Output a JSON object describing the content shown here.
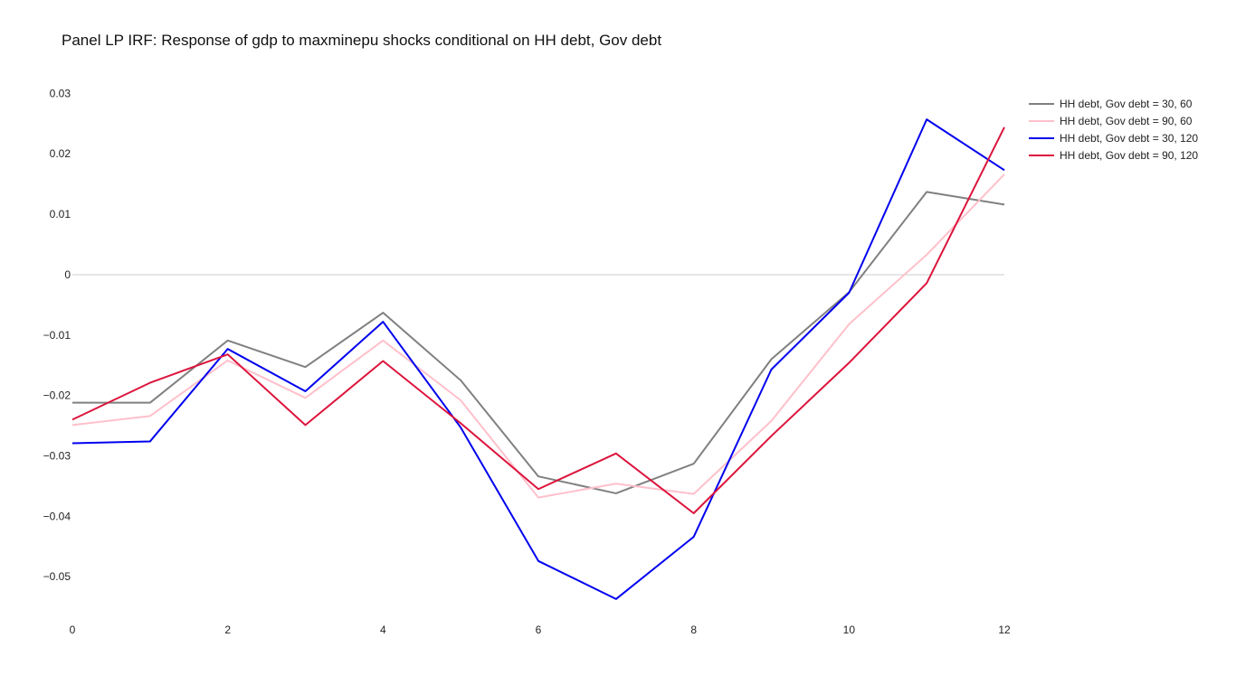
{
  "chart_data": {
    "type": "line",
    "title": "Panel LP IRF: Response of gdp to maxminepu shocks conditional on HH debt, Gov debt",
    "xlabel": "",
    "ylabel": "",
    "x": [
      0,
      1,
      2,
      3,
      4,
      5,
      6,
      7,
      8,
      9,
      10,
      11,
      12
    ],
    "x_ticks": [
      0,
      2,
      4,
      6,
      8,
      10,
      12
    ],
    "x_tick_labels": [
      "0",
      "2",
      "4",
      "6",
      "8",
      "10",
      "12"
    ],
    "xlim": [
      0,
      12
    ],
    "y_ticks": [
      0.03,
      0.02,
      0.01,
      0,
      -0.01,
      -0.02,
      -0.03,
      -0.04,
      -0.05
    ],
    "y_tick_labels": [
      "0.03",
      "0.02",
      "0.01",
      "0",
      "−0.01",
      "−0.02",
      "−0.03",
      "−0.04",
      "−0.05"
    ],
    "ylim": [
      -0.0585,
      0.0335
    ],
    "grid": false,
    "zero_line": true,
    "zero_line_color": "#cccccc",
    "legend_position": "top-right",
    "series": [
      {
        "name": "HH debt, Gov debt = 30, 60",
        "color": "#808080",
        "values": [
          -0.0212,
          -0.0212,
          -0.0109,
          -0.0153,
          -0.0063,
          -0.0175,
          -0.0334,
          -0.0362,
          -0.0313,
          -0.014,
          -0.0029,
          0.0137,
          0.0116
        ]
      },
      {
        "name": "HH debt, Gov debt = 90, 60",
        "color": "#ffc0cb",
        "values": [
          -0.0249,
          -0.0234,
          -0.0142,
          -0.0204,
          -0.0109,
          -0.0208,
          -0.0369,
          -0.0346,
          -0.0363,
          -0.0242,
          -0.0082,
          0.0033,
          0.0166
        ]
      },
      {
        "name": "HH debt, Gov debt = 30, 120",
        "color": "#0000ee",
        "values": [
          -0.0279,
          -0.0276,
          -0.0123,
          -0.0193,
          -0.0078,
          -0.0253,
          -0.0474,
          -0.0537,
          -0.0434,
          -0.0157,
          -0.003,
          0.0257,
          0.0173
        ]
      },
      {
        "name": "HH debt, Gov debt = 90, 120",
        "color": "#dc143c",
        "values": [
          -0.024,
          -0.0179,
          -0.0132,
          -0.0249,
          -0.0143,
          -0.0246,
          -0.0355,
          -0.0296,
          -0.0395,
          -0.0267,
          -0.0146,
          -0.0014,
          0.0244
        ]
      }
    ]
  }
}
